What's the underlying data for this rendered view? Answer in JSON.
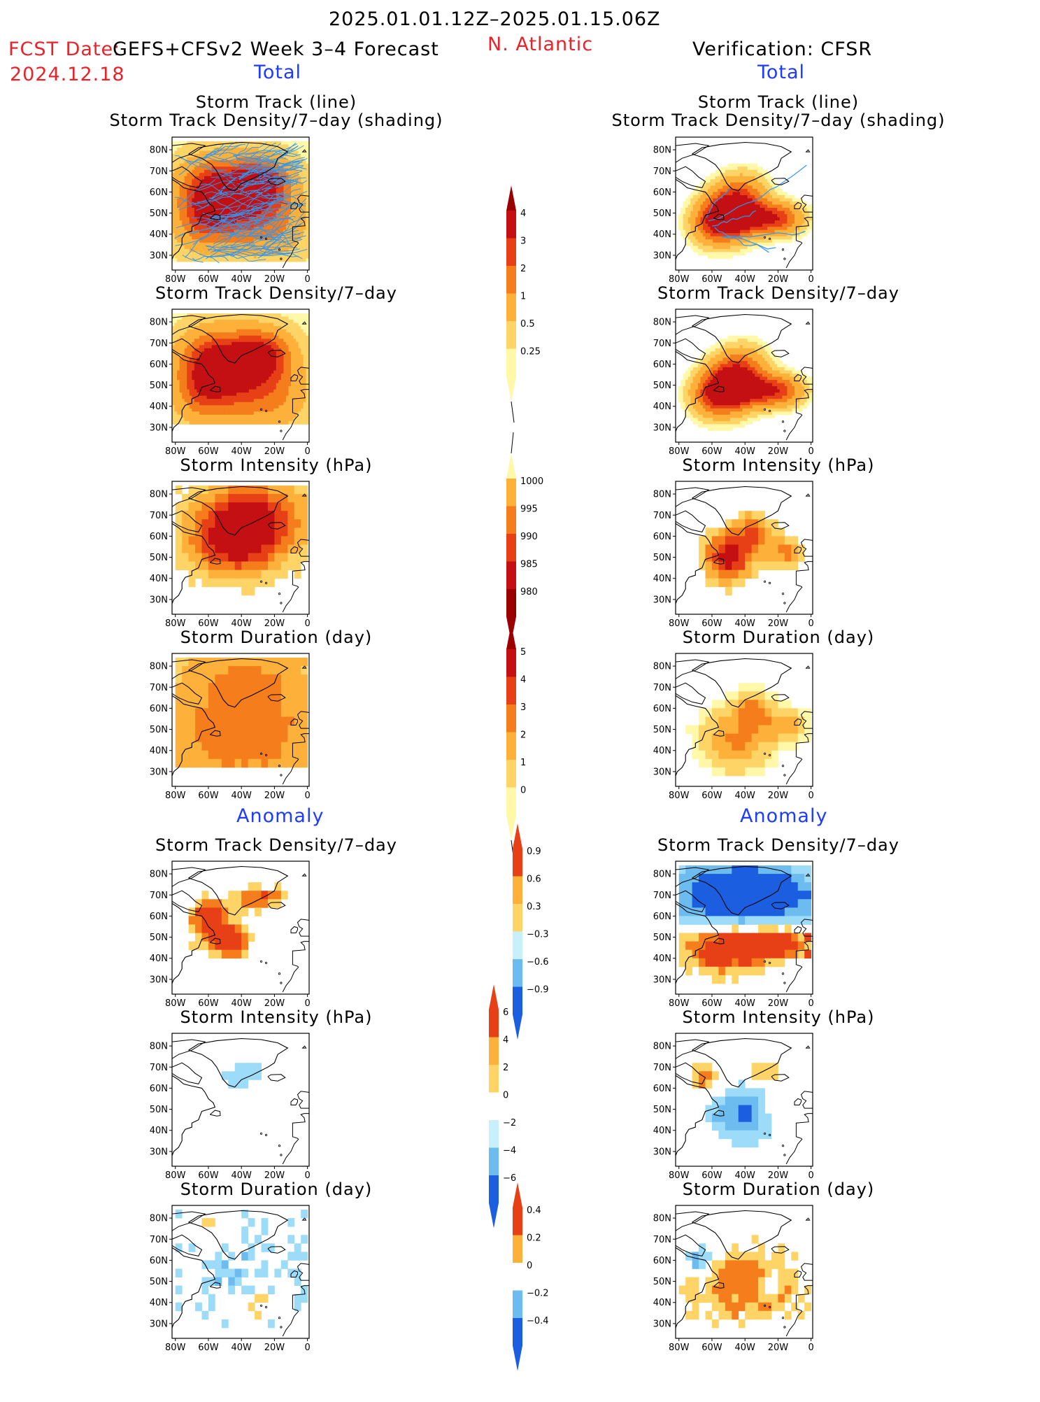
{
  "header": {
    "period": "2025.01.01.12Z–2025.01.15.06Z",
    "fcst_date_label": "FCST Date:",
    "forecast_product": "GEFS+CFSv2 Week 3–4 Forecast",
    "fcst_date": "2024.12.18",
    "region": "N. Atlantic",
    "verification": "Verification: CFSR"
  },
  "sections": {
    "total_left": "Total",
    "total_right": "Total",
    "anomaly_left": "Anomaly",
    "anomaly_right": "Anomaly"
  },
  "titles": {
    "track_line": "Storm Track (line)",
    "track_shading": "Storm Track Density/7–day (shading)",
    "density": "Storm Track Density/7–day",
    "intensity": "Storm Intensity (hPa)",
    "duration": "Storm Duration (day)"
  },
  "map_axes": {
    "lat_ticks": [
      "80N",
      "70N",
      "60N",
      "50N",
      "40N",
      "30N"
    ],
    "lon_ticks": [
      "80W",
      "60W",
      "40W",
      "20W",
      "0"
    ]
  },
  "colors": {
    "warm": [
      "#fff8a8",
      "#fed466",
      "#fdb13a",
      "#f57d1c",
      "#e84016",
      "#c41012",
      "#9a0000"
    ],
    "cool": [
      "#c8f0fc",
      "#9cdcf8",
      "#6cbcf0",
      "#3c8ee8",
      "#1c5ee0"
    ],
    "track_line": "#2f97f0"
  },
  "chart_data": [
    {
      "type": "heatmap",
      "id": "fcst_track",
      "title": "Storm Track (line) / Storm Track Density/7–day (shading)",
      "source": "GEFS+CFSv2"
    },
    {
      "type": "heatmap",
      "id": "obs_track",
      "title": "Storm Track (line) / Storm Track Density/7–day (shading)",
      "source": "CFSR"
    },
    {
      "type": "heatmap",
      "id": "fcst_density",
      "title": "Storm Track Density/7–day",
      "source": "GEFS+CFSv2"
    },
    {
      "type": "heatmap",
      "id": "obs_density",
      "title": "Storm Track Density/7–day",
      "source": "CFSR"
    },
    {
      "type": "heatmap",
      "id": "fcst_intensity",
      "title": "Storm Intensity (hPa)",
      "source": "GEFS+CFSv2"
    },
    {
      "type": "heatmap",
      "id": "obs_intensity",
      "title": "Storm Intensity (hPa)",
      "source": "CFSR"
    },
    {
      "type": "heatmap",
      "id": "fcst_duration",
      "title": "Storm Duration (day)",
      "source": "GEFS+CFSv2"
    },
    {
      "type": "heatmap",
      "id": "obs_duration",
      "title": "Storm Duration (day)",
      "source": "CFSR"
    },
    {
      "type": "heatmap",
      "id": "fcst_density_anom",
      "title": "Storm Track Density/7–day",
      "source": "GEFS+CFSv2"
    },
    {
      "type": "heatmap",
      "id": "obs_density_anom",
      "title": "Storm Track Density/7–day",
      "source": "CFSR"
    },
    {
      "type": "heatmap",
      "id": "fcst_intensity_anom",
      "title": "Storm Intensity (hPa)",
      "source": "GEFS+CFSv2"
    },
    {
      "type": "heatmap",
      "id": "obs_intensity_anom",
      "title": "Storm Intensity (hPa)",
      "source": "CFSR"
    },
    {
      "type": "heatmap",
      "id": "fcst_duration_anom",
      "title": "Storm Duration (day)",
      "source": "GEFS+CFSv2"
    },
    {
      "type": "heatmap",
      "id": "obs_duration_anom",
      "title": "Storm Duration (day)",
      "source": "CFSR"
    }
  ],
  "colorbars": {
    "density": {
      "labels": [
        "4",
        "3",
        "2",
        "1",
        "0.5",
        "0.25"
      ]
    },
    "intensity": {
      "labels": [
        "1000",
        "995",
        "990",
        "985",
        "980"
      ]
    },
    "duration": {
      "labels": [
        "5",
        "4",
        "3",
        "2",
        "1",
        "0"
      ]
    },
    "density_anom": {
      "labels": [
        "0.9",
        "0.6",
        "0.3",
        "−0.3",
        "−0.6",
        "−0.9"
      ]
    },
    "intensity_anom": {
      "labels": [
        "6",
        "4",
        "2",
        "0",
        "−2",
        "−4",
        "−6"
      ]
    },
    "duration_anom": {
      "labels": [
        "0.4",
        "0.2",
        "0",
        "−0.2",
        "−0.4"
      ]
    }
  }
}
